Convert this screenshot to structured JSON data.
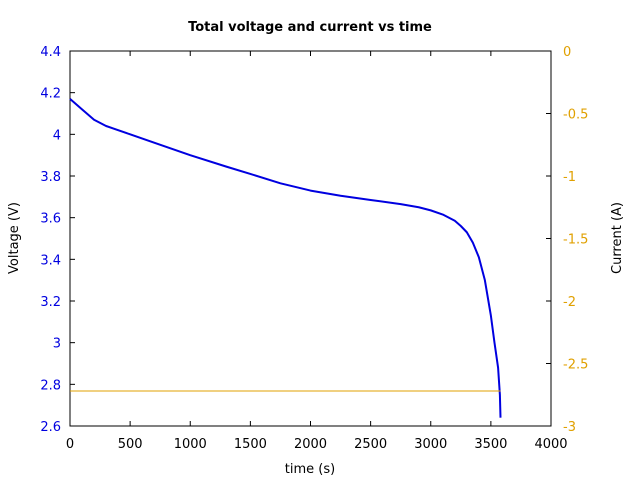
{
  "chart_data": {
    "type": "line",
    "title": "Total voltage and current vs time",
    "xlabel": "time (s)",
    "ylabel": "Voltage (V)",
    "y2label": "Current (A)",
    "xlim": [
      0,
      4000
    ],
    "ylim": [
      2.6,
      4.4
    ],
    "y2lim": [
      -3,
      0
    ],
    "xticks": [
      0,
      500,
      1000,
      1500,
      2000,
      2500,
      3000,
      3500,
      4000
    ],
    "yticks": [
      2.6,
      2.8,
      3,
      3.2,
      3.4,
      3.6,
      3.8,
      4,
      4.2,
      4.4
    ],
    "yticklabels": [
      "2.6",
      "2.8",
      "3",
      "3.2",
      "3.4",
      "3.6",
      "3.8",
      "4",
      "4.2",
      "4.4"
    ],
    "y2ticks": [
      -3,
      -2.5,
      -2,
      -1.5,
      -1,
      -0.5,
      0
    ],
    "y2ticklabels": [
      "-3",
      "-2.5",
      "-2",
      "-1.5",
      "-1",
      "-0.5",
      "0"
    ],
    "grid": false,
    "colors": {
      "voltage": "#0000e0",
      "current": "#e0a000",
      "axis": "#000000"
    },
    "series": [
      {
        "axis": "left",
        "x": [
          0,
          100,
          200,
          300,
          500,
          700,
          1000,
          1300,
          1500,
          1750,
          2000,
          2250,
          2500,
          2750,
          2900,
          3000,
          3100,
          3200,
          3250,
          3300,
          3350,
          3400,
          3450,
          3500,
          3530,
          3560,
          3575,
          3580
        ],
        "y": [
          4.17,
          4.12,
          4.07,
          4.04,
          4.0,
          3.96,
          3.9,
          3.845,
          3.81,
          3.765,
          3.73,
          3.705,
          3.685,
          3.665,
          3.65,
          3.635,
          3.615,
          3.585,
          3.56,
          3.53,
          3.48,
          3.41,
          3.3,
          3.13,
          3.0,
          2.88,
          2.75,
          2.64
        ]
      },
      {
        "axis": "right",
        "x": [
          0,
          3580
        ],
        "y": [
          -2.72,
          -2.72
        ]
      }
    ]
  }
}
